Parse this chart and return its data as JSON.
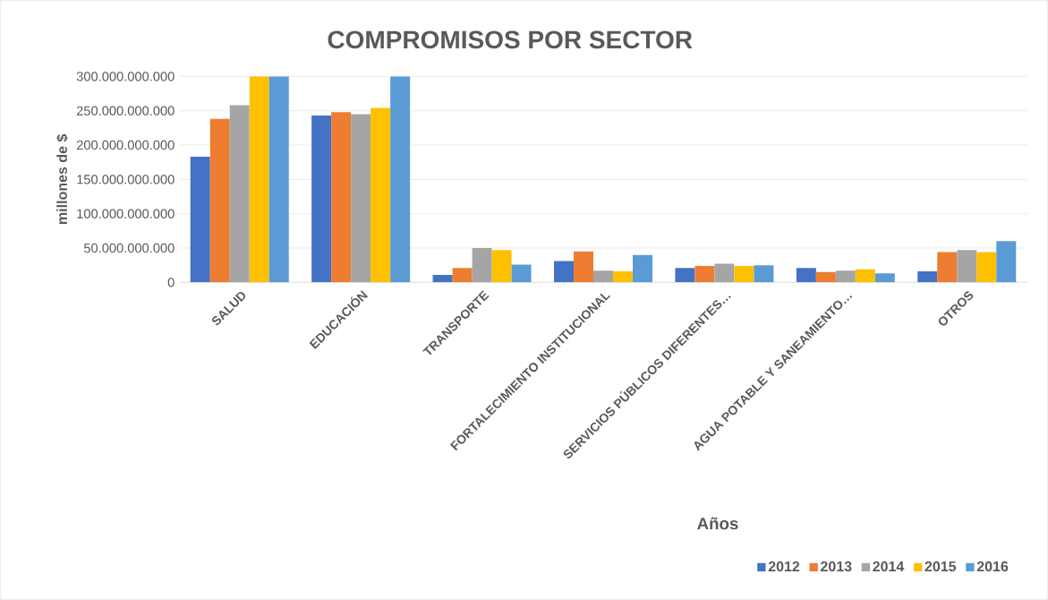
{
  "chart_data": {
    "type": "bar",
    "title": "COMPROMISOS POR SECTOR",
    "xlabel": "Años",
    "ylabel": "millones de $",
    "categories": [
      "SALUD",
      "EDUCACIÓN",
      "TRANSPORTE",
      "FORTALECIMIENTO INSTITUCIONAL",
      "SERVICIOS PÚBLICOS DIFERENTES…",
      "AGUA POTABLE Y SANEAMIENTO…",
      "OTROS"
    ],
    "series": [
      {
        "name": "2012",
        "color": "#4472c4",
        "values": [
          183000000000,
          243000000000,
          11000000000,
          31000000000,
          21000000000,
          21000000000,
          16000000000
        ]
      },
      {
        "name": "2013",
        "color": "#ed7d31",
        "values": [
          238000000000,
          248000000000,
          21000000000,
          45000000000,
          24000000000,
          15000000000,
          44000000000
        ]
      },
      {
        "name": "2014",
        "color": "#a5a5a5",
        "values": [
          258000000000,
          245000000000,
          50000000000,
          17000000000,
          27000000000,
          17000000000,
          47000000000
        ]
      },
      {
        "name": "2015",
        "color": "#ffc000",
        "values": [
          300000000000,
          254000000000,
          47000000000,
          16000000000,
          24000000000,
          19000000000,
          44000000000
        ]
      },
      {
        "name": "2016",
        "color": "#5b9bd5",
        "values": [
          300000000000,
          300000000000,
          26000000000,
          40000000000,
          25000000000,
          13000000000,
          60000000000
        ]
      }
    ],
    "ylim": [
      0,
      300000000000
    ],
    "yticks": [
      {
        "value": 0,
        "label": "0"
      },
      {
        "value": 50000000000,
        "label": "50.000.000.000"
      },
      {
        "value": 100000000000,
        "label": "100.000.000.000"
      },
      {
        "value": 150000000000,
        "label": "150.000.000.000"
      },
      {
        "value": 200000000000,
        "label": "200.000.000.000"
      },
      {
        "value": 250000000000,
        "label": "250.000.000.000"
      },
      {
        "value": 300000000000,
        "label": "300.000.000.000"
      }
    ],
    "grid": "y",
    "legend": "bottom right"
  }
}
